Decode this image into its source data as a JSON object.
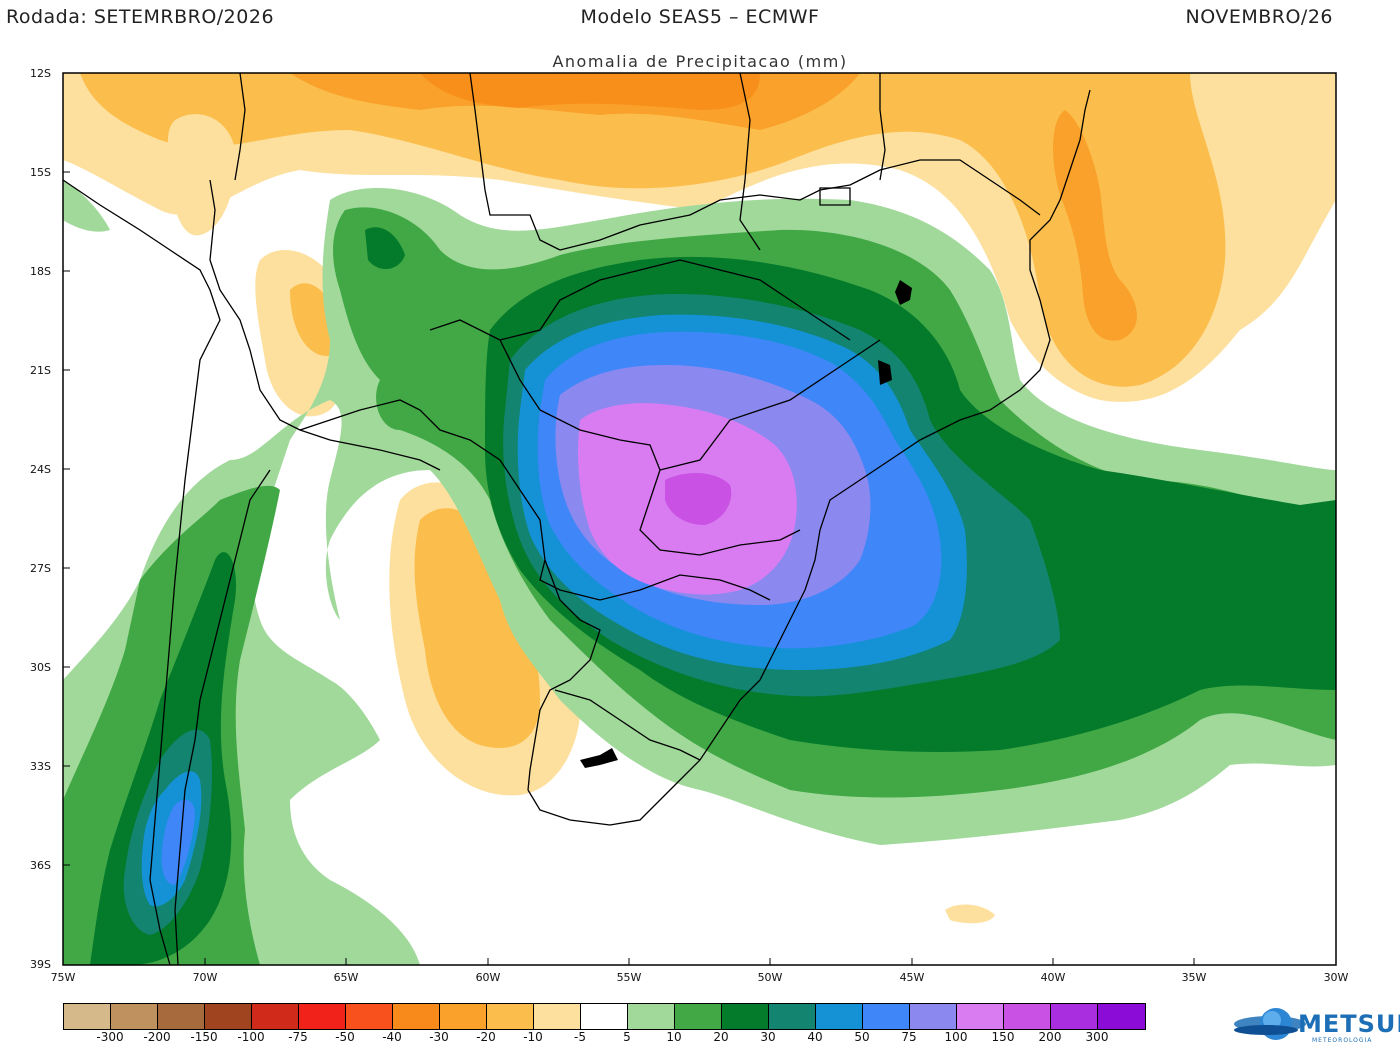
{
  "header": {
    "left": "Rodada: SETEMRBRO/2026",
    "center": "Modelo SEAS5 – ECMWF",
    "right": "NOVEMBRO/26",
    "subtitle": "Anomalia de Precipitacao (mm)"
  },
  "map": {
    "lat_ticks": [
      "12S",
      "15S",
      "18S",
      "21S",
      "24S",
      "27S",
      "30S",
      "33S",
      "36S",
      "39S"
    ],
    "lon_ticks": [
      "75W",
      "70W",
      "65W",
      "60W",
      "55W",
      "50W",
      "45W",
      "40W",
      "35W",
      "30W"
    ],
    "lat_range": [
      -39,
      -12
    ],
    "lon_range": [
      -75,
      -30
    ]
  },
  "legend": {
    "labels": [
      "-300",
      "-200",
      "-150",
      "-100",
      "-75",
      "-50",
      "-40",
      "-30",
      "-20",
      "-10",
      "-5",
      "5",
      "10",
      "20",
      "30",
      "40",
      "50",
      "75",
      "100",
      "150",
      "200",
      "300"
    ],
    "colors": [
      "#d6b98a",
      "#bf915f",
      "#a66a3d",
      "#a0441f",
      "#d02a1a",
      "#f0221a",
      "#f8511d",
      "#f8891b",
      "#f9a12a",
      "#fbbe4c",
      "#fde09e",
      "#ffffff",
      "#a1d99b",
      "#41a845",
      "#047a2b",
      "#128470",
      "#1592d6",
      "#3f86f8",
      "#8b89f0",
      "#d97cf2",
      "#c952e4",
      "#a92ee0",
      "#8a0cd6"
    ]
  },
  "logo": {
    "name": "METSUL",
    "sub": "METEOROLOGIA"
  }
}
